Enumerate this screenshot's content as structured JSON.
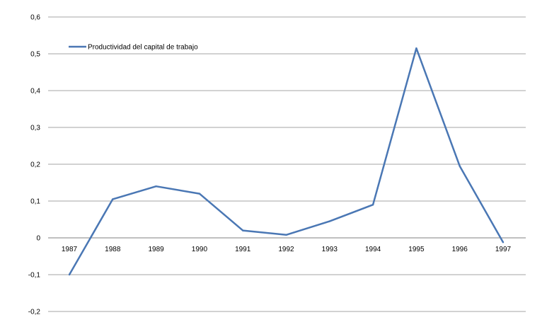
{
  "chart_data": {
    "type": "line",
    "title": "",
    "xlabel": "",
    "ylabel": "",
    "categories": [
      "1987",
      "1988",
      "1989",
      "1990",
      "1991",
      "1992",
      "1993",
      "1994",
      "1995",
      "1996",
      "1997"
    ],
    "series": [
      {
        "name": "Productividad del capital de trabajo",
        "color": "#4a77b4",
        "values": [
          -0.1,
          0.105,
          0.14,
          0.12,
          0.02,
          0.008,
          0.045,
          0.09,
          0.515,
          0.195,
          -0.012
        ]
      }
    ],
    "ylim": [
      -0.2,
      0.6
    ],
    "yticks": [
      "-0,2",
      "-0,1",
      "0",
      "0,1",
      "0,2",
      "0,3",
      "0,4",
      "0,5",
      "0,6"
    ],
    "grid": true,
    "legend_position": "top-left"
  }
}
